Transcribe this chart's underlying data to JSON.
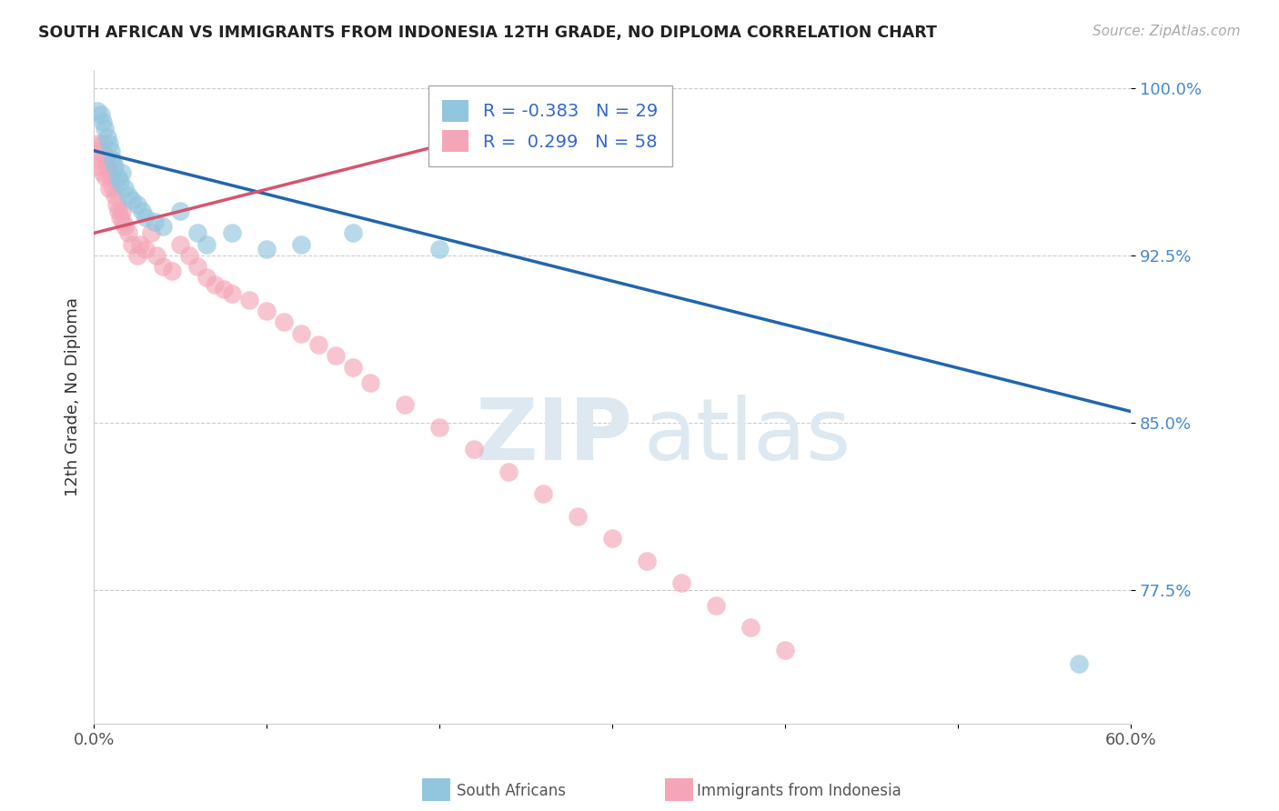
{
  "title": "SOUTH AFRICAN VS IMMIGRANTS FROM INDONESIA 12TH GRADE, NO DIPLOMA CORRELATION CHART",
  "source": "Source: ZipAtlas.com",
  "ylabel": "12th Grade, No Diploma",
  "xlim": [
    0.0,
    0.6
  ],
  "ylim": [
    0.715,
    1.008
  ],
  "blue_R": "-0.383",
  "blue_N": "29",
  "pink_R": "0.299",
  "pink_N": "58",
  "blue_color": "#92c5de",
  "pink_color": "#f4a6b8",
  "blue_line_color": "#2166ac",
  "pink_line_color": "#d6546e",
  "legend_label_blue": "South Africans",
  "legend_label_pink": "Immigrants from Indonesia",
  "watermark_zip": "ZIP",
  "watermark_atlas": "atlas",
  "blue_scatter_x": [
    0.002,
    0.004,
    0.005,
    0.006,
    0.008,
    0.009,
    0.01,
    0.011,
    0.012,
    0.014,
    0.015,
    0.016,
    0.018,
    0.02,
    0.022,
    0.025,
    0.028,
    0.03,
    0.035,
    0.04,
    0.05,
    0.06,
    0.065,
    0.08,
    0.1,
    0.12,
    0.15,
    0.2,
    0.57
  ],
  "blue_scatter_y": [
    0.99,
    0.988,
    0.985,
    0.982,
    0.978,
    0.975,
    0.972,
    0.968,
    0.965,
    0.96,
    0.958,
    0.962,
    0.955,
    0.952,
    0.95,
    0.948,
    0.945,
    0.942,
    0.94,
    0.938,
    0.945,
    0.935,
    0.93,
    0.935,
    0.928,
    0.93,
    0.935,
    0.928,
    0.742
  ],
  "pink_scatter_x": [
    0.001,
    0.002,
    0.003,
    0.004,
    0.005,
    0.005,
    0.006,
    0.007,
    0.007,
    0.008,
    0.009,
    0.009,
    0.01,
    0.01,
    0.011,
    0.012,
    0.013,
    0.014,
    0.015,
    0.016,
    0.017,
    0.018,
    0.02,
    0.022,
    0.025,
    0.027,
    0.03,
    0.033,
    0.036,
    0.04,
    0.045,
    0.05,
    0.055,
    0.06,
    0.065,
    0.07,
    0.075,
    0.08,
    0.09,
    0.1,
    0.11,
    0.12,
    0.13,
    0.14,
    0.15,
    0.16,
    0.18,
    0.2,
    0.22,
    0.24,
    0.26,
    0.28,
    0.3,
    0.32,
    0.34,
    0.36,
    0.38,
    0.4
  ],
  "pink_scatter_y": [
    0.965,
    0.975,
    0.972,
    0.968,
    0.975,
    0.962,
    0.97,
    0.96,
    0.968,
    0.965,
    0.955,
    0.962,
    0.96,
    0.968,
    0.955,
    0.952,
    0.948,
    0.945,
    0.942,
    0.945,
    0.94,
    0.938,
    0.935,
    0.93,
    0.925,
    0.93,
    0.928,
    0.935,
    0.925,
    0.92,
    0.918,
    0.93,
    0.925,
    0.92,
    0.915,
    0.912,
    0.91,
    0.908,
    0.905,
    0.9,
    0.895,
    0.89,
    0.885,
    0.88,
    0.875,
    0.868,
    0.858,
    0.848,
    0.838,
    0.828,
    0.818,
    0.808,
    0.798,
    0.788,
    0.778,
    0.768,
    0.758,
    0.748
  ],
  "blue_trend_x": [
    0.0,
    0.6
  ],
  "blue_trend_y": [
    0.972,
    0.855
  ],
  "pink_trend_x": [
    0.0,
    0.28
  ],
  "pink_trend_y": [
    0.935,
    0.99
  ],
  "yticks": [
    0.775,
    0.85,
    0.925,
    1.0
  ],
  "yticklabels": [
    "77.5%",
    "85.0%",
    "92.5%",
    "100.0%"
  ]
}
